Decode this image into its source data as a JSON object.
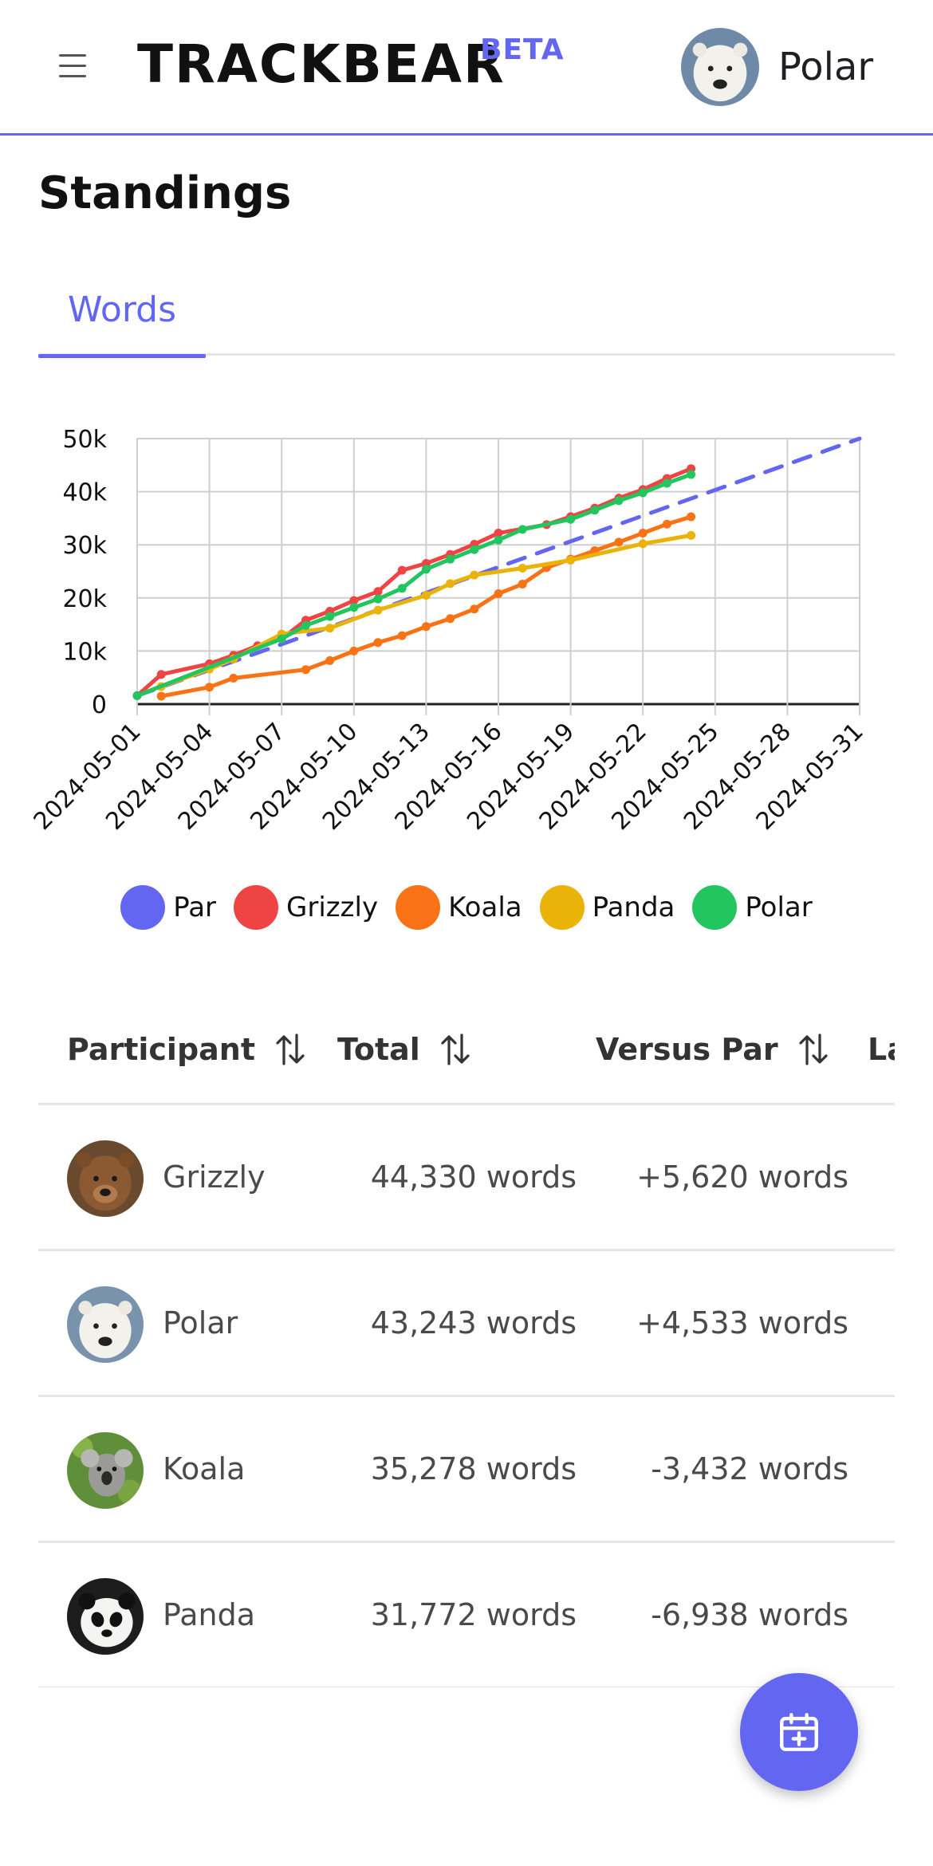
{
  "app": {
    "brand": "TRACKBEAR",
    "badge": "BETA"
  },
  "user": {
    "name": "Polar",
    "avatar": "polar-bear-avatar"
  },
  "page": {
    "title": "Standings"
  },
  "tabs": [
    {
      "label": "Words",
      "active": true
    }
  ],
  "colors": {
    "accent": "#6366f1",
    "par": "#6366f1",
    "grizzly": "#ef4444",
    "koala": "#f97316",
    "panda": "#eab308",
    "polar": "#22c55e"
  },
  "chart_data": {
    "type": "line",
    "title": "",
    "xlabel": "",
    "ylabel": "",
    "ylim": [
      0,
      50000
    ],
    "y_ticks": [
      "0",
      "10k",
      "20k",
      "30k",
      "40k",
      "50k"
    ],
    "x_ticks": [
      "2024-05-01",
      "2024-05-04",
      "2024-05-07",
      "2024-05-10",
      "2024-05-13",
      "2024-05-16",
      "2024-05-19",
      "2024-05-22",
      "2024-05-25",
      "2024-05-28",
      "2024-05-31"
    ],
    "xlim": [
      "2024-05-01",
      "2024-05-31"
    ],
    "grid": true,
    "legend": "bottom",
    "series": [
      {
        "name": "Par",
        "color": "#6366f1",
        "dashed": true,
        "markers": false,
        "x": [
          "2024-05-01",
          "2024-05-31"
        ],
        "y": [
          1600,
          50000
        ]
      },
      {
        "name": "Grizzly",
        "color": "#ef4444",
        "dashed": false,
        "markers": true,
        "x": [
          "2024-05-01",
          "2024-05-02",
          "2024-05-04",
          "2024-05-05",
          "2024-05-06",
          "2024-05-07",
          "2024-05-08",
          "2024-05-09",
          "2024-05-10",
          "2024-05-11",
          "2024-05-12",
          "2024-05-13",
          "2024-05-14",
          "2024-05-15",
          "2024-05-16",
          "2024-05-18",
          "2024-05-19",
          "2024-05-20",
          "2024-05-21",
          "2024-05-22",
          "2024-05-23",
          "2024-05-24"
        ],
        "y": [
          1600,
          5600,
          7600,
          9200,
          11000,
          12300,
          15800,
          17500,
          19500,
          21200,
          25200,
          26500,
          28200,
          30100,
          32200,
          33800,
          35300,
          36900,
          38800,
          40400,
          42500,
          44330
        ]
      },
      {
        "name": "Koala",
        "color": "#f97316",
        "dashed": false,
        "markers": true,
        "x": [
          "2024-05-02",
          "2024-05-04",
          "2024-05-05",
          "2024-05-08",
          "2024-05-09",
          "2024-05-10",
          "2024-05-11",
          "2024-05-12",
          "2024-05-13",
          "2024-05-14",
          "2024-05-15",
          "2024-05-16",
          "2024-05-17",
          "2024-05-18",
          "2024-05-19",
          "2024-05-20",
          "2024-05-21",
          "2024-05-22",
          "2024-05-23",
          "2024-05-24"
        ],
        "y": [
          1500,
          3200,
          4900,
          6500,
          8200,
          10000,
          11600,
          12900,
          14600,
          16100,
          17900,
          20800,
          22600,
          25700,
          27300,
          28900,
          30500,
          32200,
          33900,
          35278
        ]
      },
      {
        "name": "Panda",
        "color": "#eab308",
        "dashed": false,
        "markers": true,
        "x": [
          "2024-05-02",
          "2024-05-04",
          "2024-05-05",
          "2024-05-07",
          "2024-05-09",
          "2024-05-11",
          "2024-05-13",
          "2024-05-14",
          "2024-05-15",
          "2024-05-17",
          "2024-05-19",
          "2024-05-22",
          "2024-05-24"
        ],
        "y": [
          3300,
          6600,
          8500,
          13200,
          14300,
          17700,
          20500,
          22700,
          24300,
          25600,
          27100,
          30200,
          31772
        ]
      },
      {
        "name": "Polar",
        "color": "#22c55e",
        "dashed": false,
        "markers": true,
        "x": [
          "2024-05-01",
          "2024-05-07",
          "2024-05-08",
          "2024-05-09",
          "2024-05-10",
          "2024-05-11",
          "2024-05-12",
          "2024-05-13",
          "2024-05-14",
          "2024-05-15",
          "2024-05-16",
          "2024-05-17",
          "2024-05-19",
          "2024-05-20",
          "2024-05-21",
          "2024-05-22",
          "2024-05-23",
          "2024-05-24"
        ],
        "y": [
          1600,
          12300,
          14800,
          16500,
          18200,
          19800,
          21800,
          25400,
          27300,
          29100,
          30900,
          32900,
          34800,
          36500,
          38300,
          39800,
          41600,
          43243
        ]
      }
    ]
  },
  "table": {
    "columns": [
      "Participant",
      "Total",
      "Versus Par",
      "La"
    ],
    "rows": [
      {
        "name": "Grizzly",
        "avatar": "grizzly-bear-avatar",
        "total": "44,330 words",
        "versus_par": "+5,620 words"
      },
      {
        "name": "Polar",
        "avatar": "polar-bear-avatar",
        "total": "43,243 words",
        "versus_par": "+4,533 words"
      },
      {
        "name": "Koala",
        "avatar": "koala-avatar",
        "total": "35,278 words",
        "versus_par": "-3,432 words"
      },
      {
        "name": "Panda",
        "avatar": "panda-avatar",
        "total": "31,772 words",
        "versus_par": "-6,938 words"
      }
    ]
  },
  "fab": {
    "icon": "calendar-plus-icon"
  }
}
